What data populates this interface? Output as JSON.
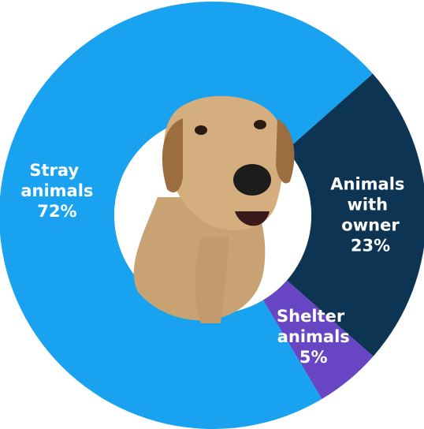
{
  "chart_data": {
    "type": "pie",
    "categories": [
      "Animals with owner",
      "Shelter animals",
      "Stray animals"
    ],
    "values": [
      23,
      5,
      72
    ],
    "value_labels": [
      "23%",
      "5%",
      "72%"
    ],
    "colors": [
      "#0d3553",
      "#6845c2",
      "#19a2ef"
    ],
    "donut": true
  }
}
